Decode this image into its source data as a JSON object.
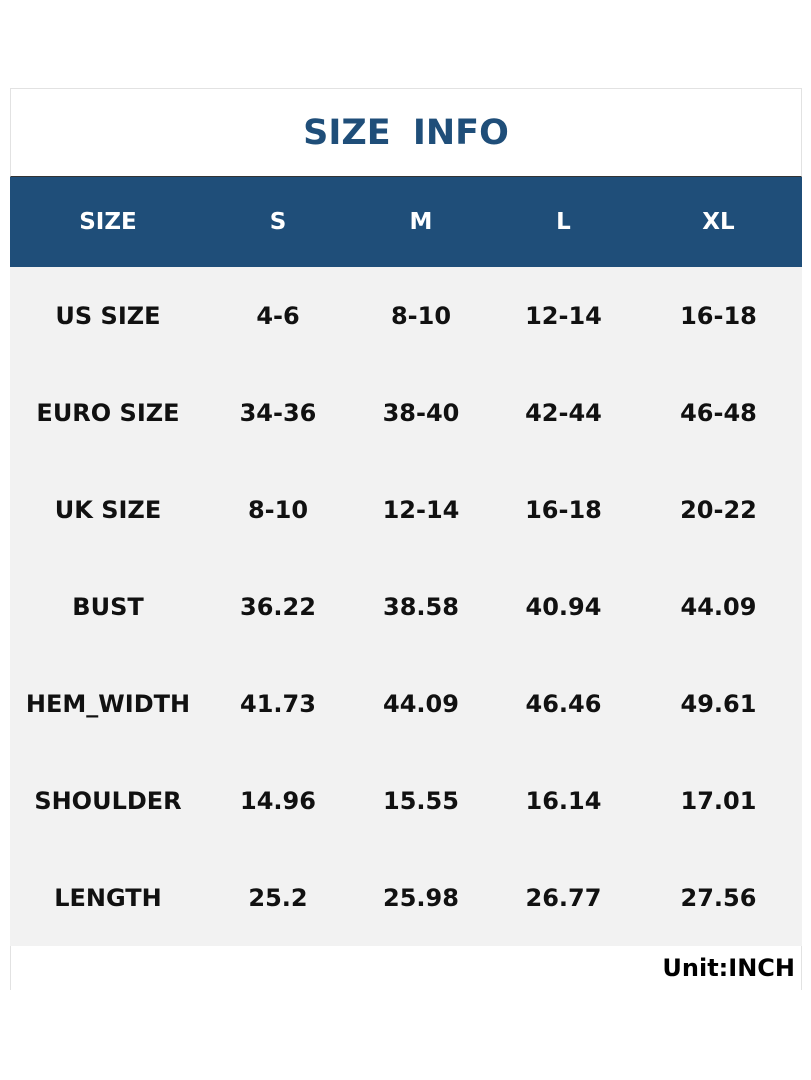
{
  "title": "SIZE INFO",
  "table": {
    "header": [
      "SIZE",
      "S",
      "M",
      "L",
      "XL"
    ],
    "rows": [
      [
        "US SIZE",
        "4-6",
        "8-10",
        "12-14",
        "16-18"
      ],
      [
        "EURO SIZE",
        "34-36",
        "38-40",
        "42-44",
        "46-48"
      ],
      [
        "UK SIZE",
        "8-10",
        "12-14",
        "16-18",
        "20-22"
      ],
      [
        "BUST",
        "36.22",
        "38.58",
        "40.94",
        "44.09"
      ],
      [
        "HEM_WIDTH",
        "41.73",
        "44.09",
        "46.46",
        "49.61"
      ],
      [
        "SHOULDER",
        "14.96",
        "15.55",
        "16.14",
        "17.01"
      ],
      [
        "LENGTH",
        "25.2",
        "25.98",
        "26.77",
        "27.56"
      ]
    ]
  },
  "footer": "Unit:INCH"
}
